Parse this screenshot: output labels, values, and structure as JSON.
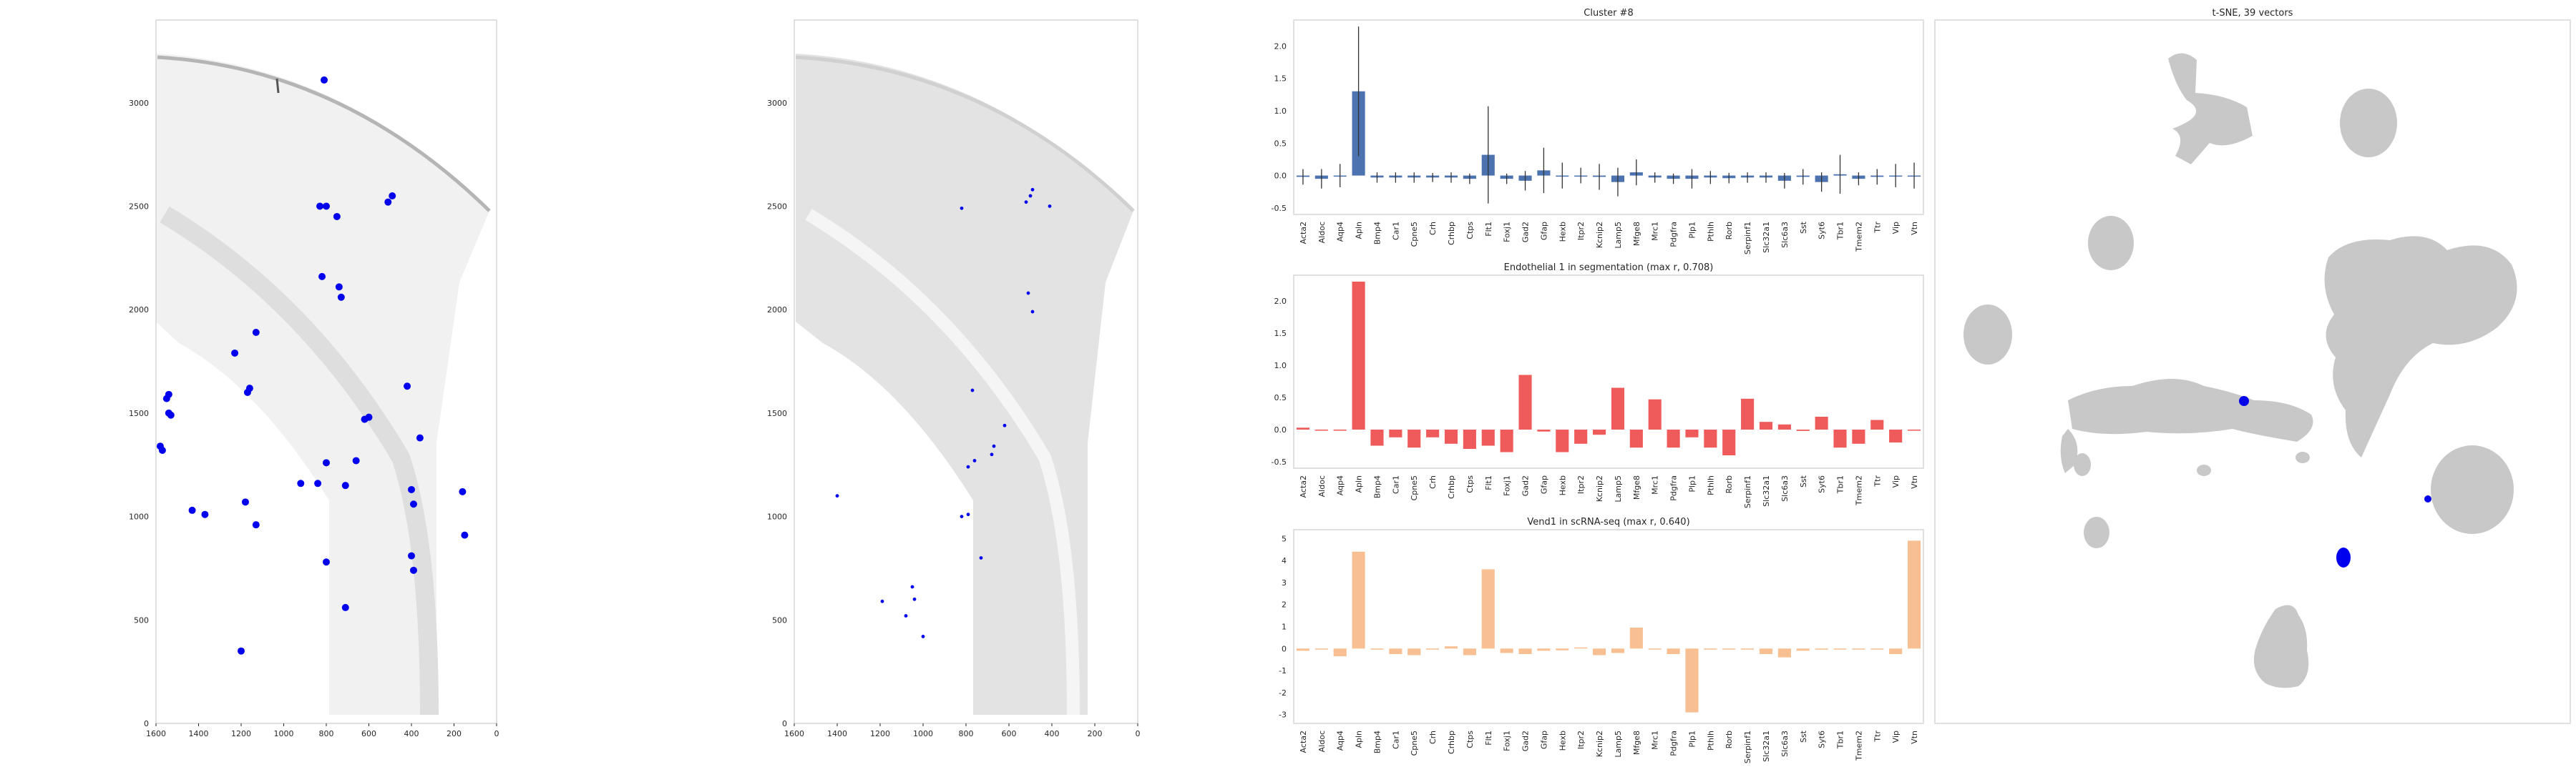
{
  "colors": {
    "cluster_bar": "#4c72b0",
    "endothelial_bar": "#ef5a5a",
    "vend1_bar": "#f7bf92",
    "marker": "#0000ee",
    "tsne_gray": "#c8c8c8",
    "tissue_gray": "#d2d2d2"
  },
  "chart_data": [
    {
      "type": "scatter",
      "panel": "tissue-map-left",
      "title": "",
      "x_ticks": [
        "1600",
        "1400",
        "1200",
        "1000",
        "800",
        "600",
        "400",
        "200",
        "0"
      ],
      "y_ticks": [
        "0",
        "500",
        "1000",
        "1500",
        "2000",
        "2500",
        "3000"
      ],
      "xlim": [
        1600,
        0
      ],
      "ylim": [
        3400,
        0
      ],
      "x_inverted": true,
      "y_inverted": true,
      "grid": false,
      "series": [
        {
          "color": "#0000ee",
          "points": [
            [
              1200,
              350
            ],
            [
              710,
              560
            ],
            [
              800,
              780
            ],
            [
              390,
              740
            ],
            [
              400,
              810
            ],
            [
              150,
              910
            ],
            [
              1130,
              960
            ],
            [
              1370,
              1010
            ],
            [
              1430,
              1030
            ],
            [
              1180,
              1070
            ],
            [
              390,
              1060
            ],
            [
              400,
              1130
            ],
            [
              160,
              1120
            ],
            [
              920,
              1160
            ],
            [
              840,
              1160
            ],
            [
              710,
              1150
            ],
            [
              800,
              1260
            ],
            [
              660,
              1270
            ],
            [
              1570,
              1320
            ],
            [
              1580,
              1340
            ],
            [
              600,
              1480
            ],
            [
              620,
              1470
            ],
            [
              360,
              1380
            ],
            [
              1530,
              1490
            ],
            [
              1540,
              1500
            ],
            [
              1550,
              1570
            ],
            [
              1540,
              1590
            ],
            [
              1170,
              1600
            ],
            [
              1160,
              1620
            ],
            [
              420,
              1630
            ],
            [
              1230,
              1790
            ],
            [
              1130,
              1890
            ],
            [
              730,
              2060
            ],
            [
              740,
              2110
            ],
            [
              820,
              2160
            ],
            [
              830,
              2500
            ],
            [
              800,
              2500
            ],
            [
              750,
              2450
            ],
            [
              510,
              2520
            ],
            [
              490,
              2550
            ],
            [
              810,
              3110
            ]
          ]
        }
      ]
    },
    {
      "type": "scatter",
      "panel": "tissue-map-middle",
      "title": "",
      "x_ticks": [
        "1600",
        "1400",
        "1200",
        "1000",
        "800",
        "600",
        "400",
        "200",
        "0"
      ],
      "y_ticks": [
        "0",
        "500",
        "1000",
        "1500",
        "2000",
        "2500",
        "3000"
      ],
      "xlim": [
        1600,
        0
      ],
      "ylim": [
        3400,
        0
      ],
      "x_inverted": true,
      "y_inverted": true,
      "grid": false,
      "series": [
        {
          "color": "#0000ee",
          "points": [
            [
              1000,
              420
            ],
            [
              1080,
              520
            ],
            [
              1190,
              590
            ],
            [
              1040,
              600
            ],
            [
              1050,
              660
            ],
            [
              730,
              800
            ],
            [
              820,
              1000
            ],
            [
              790,
              1010
            ],
            [
              1400,
              1100
            ],
            [
              790,
              1240
            ],
            [
              760,
              1270
            ],
            [
              680,
              1300
            ],
            [
              670,
              1340
            ],
            [
              620,
              1440
            ],
            [
              770,
              1610
            ],
            [
              490,
              1990
            ],
            [
              510,
              2080
            ],
            [
              820,
              2490
            ],
            [
              520,
              2520
            ],
            [
              500,
              2550
            ],
            [
              490,
              2580
            ],
            [
              410,
              2500
            ]
          ]
        }
      ]
    },
    {
      "type": "bar",
      "panel": "cluster-8",
      "title": "Cluster #8",
      "categories": [
        "Acta2",
        "Aldoc",
        "Aqp4",
        "Apln",
        "Bmp4",
        "Car1",
        "Cpne5",
        "Crh",
        "Crhbp",
        "Ctps",
        "Flt1",
        "Foxj1",
        "Gad2",
        "Gfap",
        "Hexb",
        "Itpr2",
        "Kcnip2",
        "Lamp5",
        "Mfge8",
        "Mrc1",
        "Pdgfra",
        "Plp1",
        "Pthlh",
        "Rorb",
        "Serpinf1",
        "Slc32a1",
        "Slc6a3",
        "Sst",
        "Syt6",
        "Tbr1",
        "Tmem2",
        "Ttr",
        "Vip",
        "Vtn"
      ],
      "values": [
        -0.02,
        -0.05,
        0.0,
        1.3,
        -0.03,
        -0.03,
        -0.03,
        -0.03,
        -0.03,
        -0.05,
        0.32,
        -0.05,
        -0.08,
        0.08,
        0.0,
        0.0,
        -0.02,
        -0.1,
        0.05,
        -0.03,
        -0.05,
        -0.05,
        -0.03,
        -0.04,
        -0.03,
        -0.03,
        -0.08,
        -0.02,
        -0.1,
        0.02,
        -0.05,
        -0.02,
        0.0,
        0.0
      ],
      "errors": [
        0.12,
        0.15,
        0.18,
        1.0,
        0.08,
        0.08,
        0.08,
        0.07,
        0.08,
        0.08,
        0.75,
        0.08,
        0.15,
        0.35,
        0.2,
        0.12,
        0.2,
        0.22,
        0.2,
        0.08,
        0.08,
        0.15,
        0.1,
        0.08,
        0.08,
        0.08,
        0.12,
        0.12,
        0.15,
        0.3,
        0.1,
        0.12,
        0.18,
        0.2
      ],
      "ylim": [
        -0.6,
        2.4
      ],
      "y_ticks": [
        -0.5,
        0.0,
        0.5,
        1.0,
        1.5,
        2.0
      ],
      "grid": false
    },
    {
      "type": "bar",
      "panel": "endothelial-1",
      "title": "Endothelial 1 in segmentation (max r, 0.708)",
      "categories": [
        "Acta2",
        "Aldoc",
        "Aqp4",
        "Apln",
        "Bmp4",
        "Car1",
        "Cpne5",
        "Crh",
        "Crhbp",
        "Ctps",
        "Flt1",
        "Foxj1",
        "Gad2",
        "Gfap",
        "Hexb",
        "Itpr2",
        "Kcnip2",
        "Lamp5",
        "Mfge8",
        "Mrc1",
        "Pdgfra",
        "Plp1",
        "Pthlh",
        "Rorb",
        "Serpinf1",
        "Slc32a1",
        "Slc6a3",
        "Sst",
        "Syt6",
        "Tbr1",
        "Tmem2",
        "Ttr",
        "Vip",
        "Vtn"
      ],
      "values": [
        0.03,
        0.0,
        0.0,
        2.3,
        -0.25,
        -0.12,
        -0.28,
        -0.12,
        -0.22,
        -0.3,
        -0.25,
        -0.35,
        0.85,
        -0.03,
        -0.35,
        -0.22,
        -0.08,
        0.65,
        -0.28,
        0.47,
        -0.28,
        -0.12,
        -0.28,
        -0.4,
        0.48,
        0.12,
        0.08,
        -0.02,
        0.2,
        -0.28,
        -0.22,
        0.15,
        -0.2,
        0.0
      ],
      "ylim": [
        -0.6,
        2.4
      ],
      "y_ticks": [
        -0.5,
        0.0,
        0.5,
        1.0,
        1.5,
        2.0
      ],
      "grid": false
    },
    {
      "type": "bar",
      "panel": "vend1",
      "title": "Vend1 in scRNA-seq (max r, 0.640)",
      "categories": [
        "Acta2",
        "Aldoc",
        "Aqp4",
        "Apln",
        "Bmp4",
        "Car1",
        "Cpne5",
        "Crh",
        "Crhbp",
        "Ctps",
        "Flt1",
        "Foxj1",
        "Gad2",
        "Gfap",
        "Hexb",
        "Itpr2",
        "Kcnip2",
        "Lamp5",
        "Mfge8",
        "Mrc1",
        "Pdgfra",
        "Plp1",
        "Pthlh",
        "Rorb",
        "Serpinf1",
        "Slc32a1",
        "Slc6a3",
        "Sst",
        "Syt6",
        "Tbr1",
        "Tmem2",
        "Ttr",
        "Vip",
        "Vtn"
      ],
      "values": [
        -0.1,
        0.0,
        -0.35,
        4.4,
        -0.05,
        -0.25,
        -0.3,
        0.0,
        0.1,
        -0.3,
        3.6,
        -0.2,
        -0.25,
        -0.1,
        -0.08,
        0.05,
        -0.3,
        -0.2,
        0.95,
        0.0,
        -0.25,
        -2.9,
        0.0,
        0.0,
        0.0,
        -0.25,
        -0.4,
        -0.1,
        -0.05,
        0.0,
        0.0,
        0.0,
        -0.25,
        4.9
      ],
      "ylim": [
        -3.4,
        5.4
      ],
      "y_ticks": [
        -3,
        -2,
        -1,
        0,
        1,
        2,
        3,
        4,
        5
      ],
      "grid": false
    },
    {
      "type": "scatter",
      "panel": "tsne",
      "title": "t-SNE, 39 vectors",
      "x_ticks": [],
      "y_ticks": [],
      "grid": false
    }
  ]
}
